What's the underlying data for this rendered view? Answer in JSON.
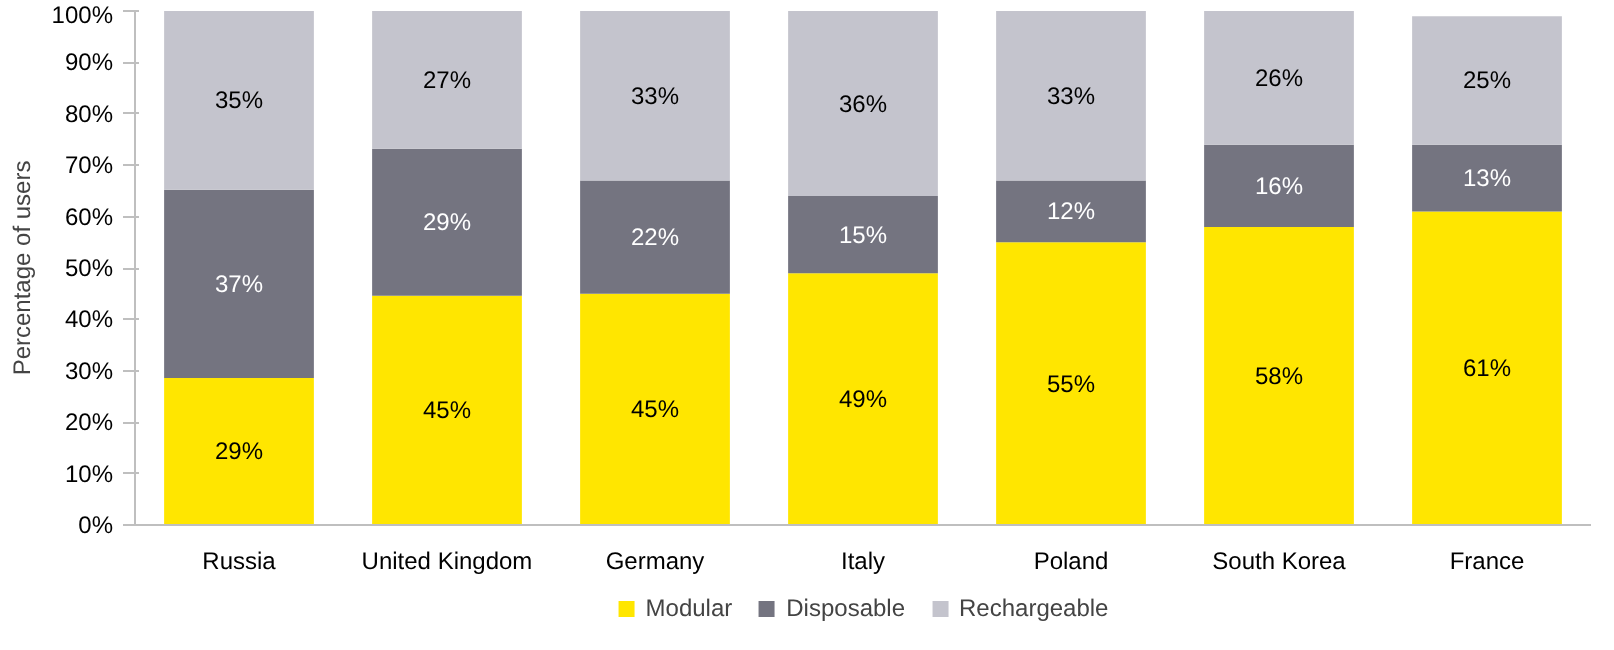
{
  "chart_data": {
    "type": "bar",
    "stacked": true,
    "ylabel": "Percentage of users",
    "categories": [
      "Russia",
      "United Kingdom",
      "Germany",
      "Italy",
      "Poland",
      "South Korea",
      "France"
    ],
    "series": [
      {
        "name": "Modular",
        "color": "#ffe600",
        "values": [
          28.6,
          44.6,
          45,
          49,
          55,
          58,
          61
        ],
        "value_labels": [
          "29%",
          "45%",
          "45%",
          "49%",
          "55%",
          "58%",
          "61%"
        ]
      },
      {
        "name": "Disposable",
        "color": "#747480",
        "values": [
          36.6,
          28.6,
          22,
          15,
          12,
          16,
          13
        ],
        "value_labels": [
          "37%",
          "29%",
          "22%",
          "15%",
          "12%",
          "16%",
          "13%"
        ]
      },
      {
        "name": "Rechargeable",
        "color": "#c4c4cd",
        "values": [
          34.8,
          26.8,
          33,
          36,
          33,
          26,
          25
        ],
        "value_labels": [
          "35%",
          "27%",
          "33%",
          "36%",
          "33%",
          "26%",
          "25%"
        ]
      }
    ],
    "ylim": [
      0,
      100
    ],
    "yticks": [
      {
        "value": 0,
        "label": "0%"
      },
      {
        "value": 10,
        "label": "10%"
      },
      {
        "value": 20,
        "label": "20%"
      },
      {
        "value": 30,
        "label": "30%"
      },
      {
        "value": 40,
        "label": "40%"
      },
      {
        "value": 50,
        "label": "50%"
      },
      {
        "value": 60,
        "label": "60%"
      },
      {
        "value": 70,
        "label": "70%"
      },
      {
        "value": 80,
        "label": "80%"
      },
      {
        "value": 90,
        "label": "90%"
      },
      {
        "value": 100,
        "label": "100%"
      }
    ],
    "grid": false,
    "legend": "bottom"
  }
}
